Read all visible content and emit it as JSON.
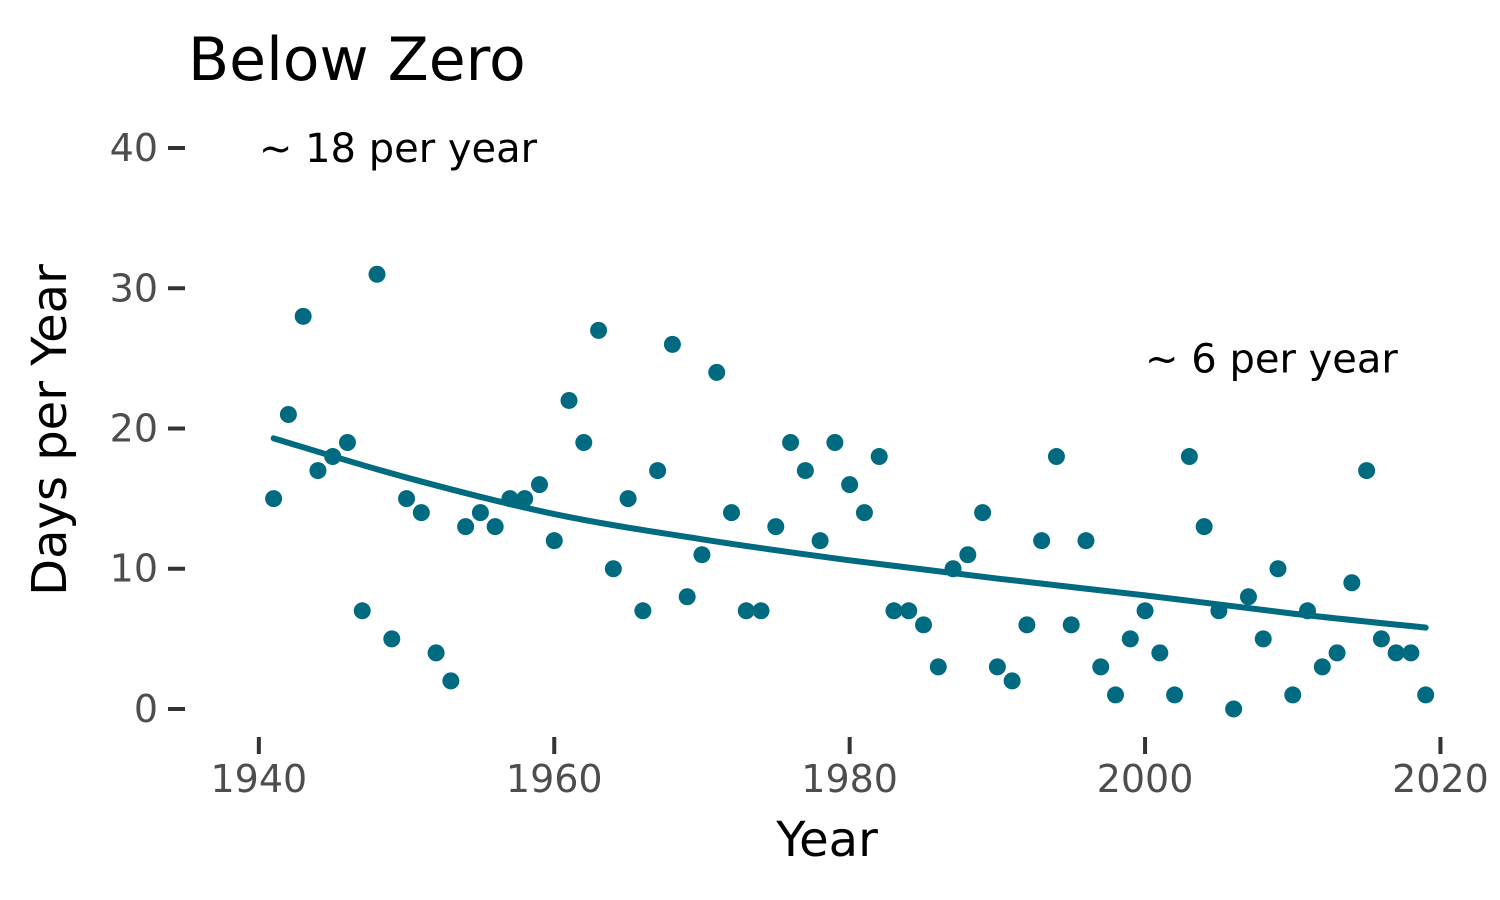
{
  "chart_data": {
    "type": "scatter",
    "title": "Below Zero",
    "xlabel": "Year",
    "ylabel": "Days per Year",
    "xlim": [
      1935,
      2022
    ],
    "ylim": [
      -2,
      42
    ],
    "x_ticks": [
      1940,
      1960,
      1980,
      2000,
      2020
    ],
    "y_ticks": [
      0,
      10,
      20,
      30,
      40
    ],
    "grid": false,
    "point_color": "#006A80",
    "line_color": "#006A80",
    "annotations": [
      {
        "text": "~ 18 per year",
        "x": 1940,
        "y": 40
      },
      {
        "text": "~ 6 per year",
        "x": 2000,
        "y": 25
      }
    ],
    "points": {
      "x": [
        1941,
        1942,
        1943,
        1944,
        1945,
        1946,
        1947,
        1948,
        1949,
        1950,
        1951,
        1952,
        1953,
        1954,
        1955,
        1956,
        1957,
        1958,
        1959,
        1960,
        1961,
        1962,
        1963,
        1964,
        1965,
        1966,
        1967,
        1968,
        1969,
        1970,
        1971,
        1972,
        1973,
        1974,
        1975,
        1976,
        1977,
        1978,
        1979,
        1980,
        1981,
        1982,
        1983,
        1984,
        1985,
        1986,
        1987,
        1988,
        1989,
        1990,
        1991,
        1992,
        1993,
        1994,
        1995,
        1996,
        1997,
        1998,
        1999,
        2000,
        2001,
        2002,
        2003,
        2004,
        2005,
        2006,
        2007,
        2008,
        2009,
        2010,
        2011,
        2012,
        2013,
        2014,
        2015,
        2016,
        2017,
        2018,
        2019
      ],
      "y": [
        15,
        21,
        28,
        17,
        18,
        19,
        7,
        31,
        5,
        15,
        14,
        4,
        2,
        13,
        14,
        13,
        15,
        15,
        16,
        12,
        22,
        19,
        27,
        10,
        15,
        7,
        17,
        26,
        8,
        11,
        24,
        14,
        7,
        7,
        13,
        19,
        17,
        12,
        19,
        16,
        14,
        18,
        7,
        7,
        6,
        3,
        10,
        11,
        14,
        3,
        2,
        6,
        12,
        18,
        6,
        12,
        3,
        1,
        5,
        7,
        4,
        1,
        18,
        13,
        7,
        0,
        8,
        5,
        10,
        1,
        7,
        3,
        4,
        9,
        17,
        5,
        4,
        4,
        1
      ]
    },
    "trend": {
      "x": [
        1941,
        1950,
        1960,
        1970,
        1980,
        1990,
        2000,
        2010,
        2019
      ],
      "y": [
        19.3,
        16.5,
        13.9,
        12.1,
        10.6,
        9.3,
        8.1,
        6.8,
        5.8
      ]
    }
  }
}
